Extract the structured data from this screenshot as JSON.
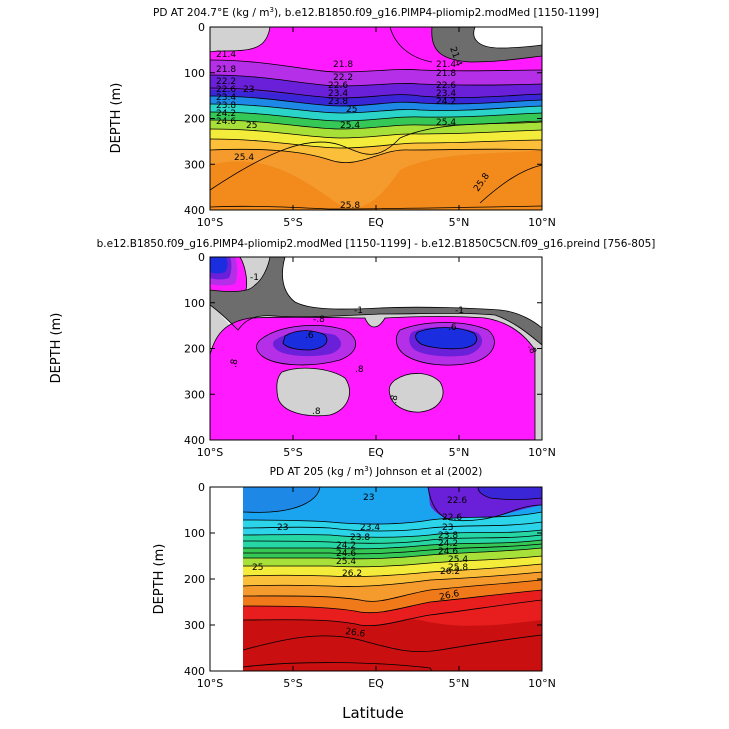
{
  "x_label": "Latitude",
  "x_ticks": [
    "10°S",
    "5°S",
    "EQ",
    "5°N",
    "10°N"
  ],
  "chart_data": [
    {
      "type": "contour",
      "title_main": "PD AT 204.7°E (kg / m",
      "title_sup": "3",
      "title_rest": "), b.e12.B1850.f09_g16.PlMP4-pliomip2.modMed [1150-1199]",
      "ylabel": "DEPTH (m)",
      "xlim": [
        -10,
        10
      ],
      "ylim": [
        400,
        0
      ],
      "y_ticks": [
        "0",
        "100",
        "200",
        "300",
        "400"
      ],
      "contour_labels": [
        "21.4",
        "21.8",
        "22.2",
        "22.6",
        "23",
        "23.4",
        "23.8",
        "24.2",
        "24.6",
        "25",
        "25.4",
        "25.8"
      ],
      "contour_depths": [
        {
          "level": "21.4",
          "depth": 60
        },
        {
          "level": "21.8",
          "depth": 78
        },
        {
          "level": "22.2",
          "depth": 90
        },
        {
          "level": "22.6",
          "depth": 98
        },
        {
          "level": "23",
          "depth": 105
        },
        {
          "level": "23.4",
          "depth": 112
        },
        {
          "level": "23.8",
          "depth": 120
        },
        {
          "level": "24.2",
          "depth": 130
        },
        {
          "level": "24.6",
          "depth": 145
        },
        {
          "level": "25",
          "depth": 170
        },
        {
          "level": "25.4",
          "depth": 230
        },
        {
          "level": "25.8",
          "depth": 360
        }
      ]
    },
    {
      "type": "contour",
      "title_main": "b.e12.B1850.f09_g16.PlMP4-pliomip2.modMed [1150-1199] - b.e12.B1850C5CN.f09_g16.preind [756-805]",
      "ylabel": "DEPTH (m)",
      "xlim": [
        -10,
        10
      ],
      "ylim": [
        400,
        0
      ],
      "y_ticks": [
        "0",
        "100",
        "200",
        "300",
        "400"
      ],
      "contour_labels": [
        "-1",
        "-.8",
        ".8",
        ".6"
      ],
      "anomaly_levels": [
        -1.4,
        -1.2,
        -1,
        -0.8,
        0.8
      ]
    },
    {
      "type": "contour",
      "title_main": "PD AT 205 (kg / m",
      "title_sup": "3",
      "title_rest": ") Johnson et al (2002)",
      "ylabel": "DEPTH (m)",
      "xlim": [
        -10,
        10
      ],
      "ylim": [
        400,
        0
      ],
      "y_ticks": [
        "0",
        "100",
        "200",
        "300",
        "400"
      ],
      "data_start_lat": -8,
      "contour_labels": [
        "22.6",
        "23",
        "23.4",
        "23.8",
        "24.2",
        "24.6",
        "25",
        "25.4",
        "25.8",
        "26.2",
        "26.6"
      ],
      "contour_depths": [
        {
          "level": "22.6",
          "depth": 30
        },
        {
          "level": "23",
          "depth": 55
        },
        {
          "level": "23.4",
          "depth": 80
        },
        {
          "level": "23.8",
          "depth": 100
        },
        {
          "level": "24.2",
          "depth": 112
        },
        {
          "level": "24.6",
          "depth": 122
        },
        {
          "level": "25",
          "depth": 135
        },
        {
          "level": "25.4",
          "depth": 148
        },
        {
          "level": "25.8",
          "depth": 160
        },
        {
          "level": "26.2",
          "depth": 185
        },
        {
          "level": "26.6",
          "depth": 280
        }
      ]
    }
  ]
}
